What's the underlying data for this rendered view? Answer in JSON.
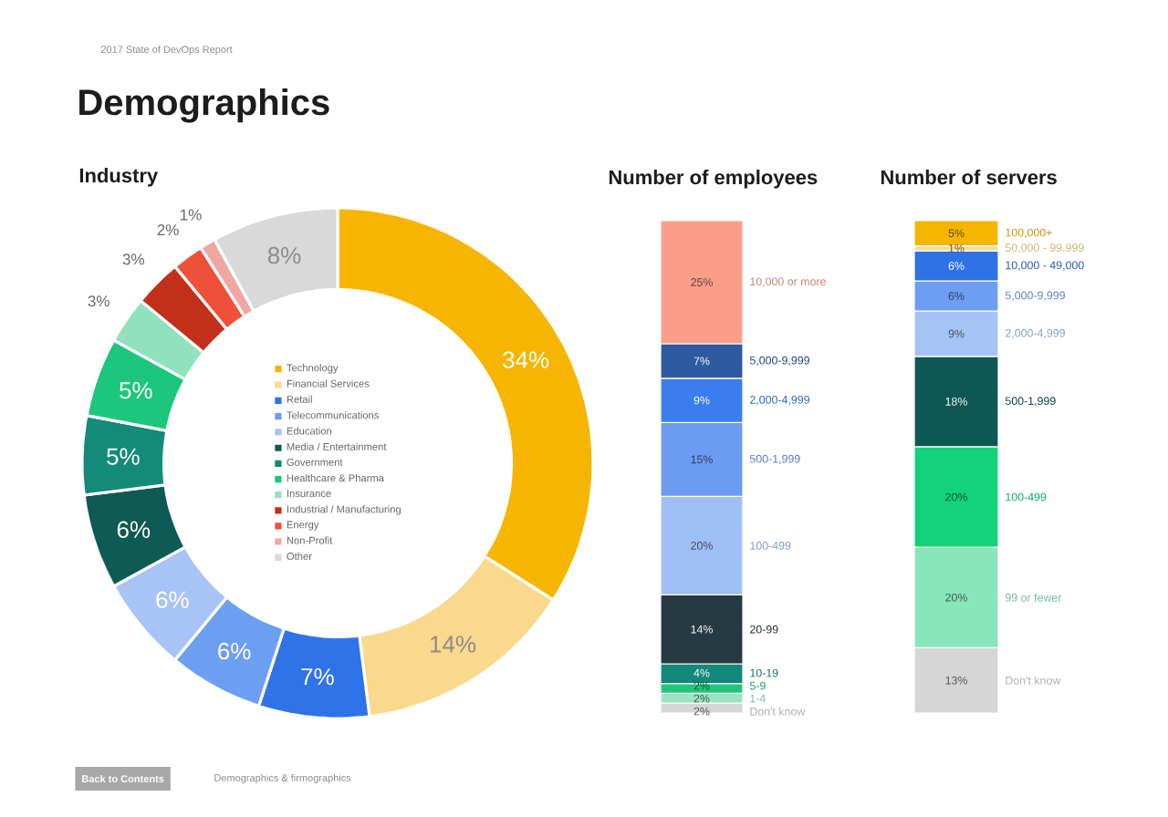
{
  "chart_data": [
    {
      "type": "other",
      "title": "Demographics",
      "subtitle": "2017 State of DevOps Report",
      "annotations": [
        "Back to Contents",
        "Demographics & firmographics"
      ]
    },
    {
      "type": "donut",
      "title": "Industry",
      "categories": [
        "Technology",
        "Financial Services",
        "Retail",
        "Telecommunications",
        "Education",
        "Media / Entertainment",
        "Government",
        "Healthcare & Pharma",
        "Insurance",
        "Industrial / Manufacturing",
        "Energy",
        "Non-Profit",
        "Other"
      ],
      "values": [
        34,
        14,
        7,
        6,
        6,
        6,
        5,
        5,
        3,
        3,
        2,
        1,
        8
      ],
      "colors": [
        "#f6b500",
        "#fad98c",
        "#2f73e8",
        "#6c9ef2",
        "#a8c4f6",
        "#0e5a55",
        "#148a78",
        "#1cc67c",
        "#8fe2bd",
        "#c2301c",
        "#ef503a",
        "#f1a7a1",
        "#d9d9d9"
      ],
      "value_labels": [
        "34%",
        "14%",
        "7%",
        "6%",
        "6%",
        "6%",
        "5%",
        "5%",
        "3%",
        "3%",
        "2%",
        "1%",
        "8%"
      ],
      "legend": "center"
    },
    {
      "type": "bar",
      "stacked": true,
      "title": "Number of employees",
      "categories": [
        null
      ],
      "series": [
        {
          "name": "Don't know",
          "color": "#d6d6d6",
          "values": [
            2
          ],
          "value_labels": [
            "2%"
          ]
        },
        {
          "name": "1-4",
          "color": "#9be3c2",
          "values": [
            2
          ],
          "value_labels": [
            "2%"
          ]
        },
        {
          "name": "5-9",
          "color": "#22c47e",
          "values": [
            2
          ],
          "value_labels": [
            "2%"
          ]
        },
        {
          "name": "10-19",
          "color": "#12897a",
          "values": [
            4
          ],
          "value_labels": [
            "4%"
          ]
        },
        {
          "name": "20-99",
          "color": "#263a42",
          "values": [
            14
          ],
          "value_labels": [
            "14%"
          ]
        },
        {
          "name": "100-499",
          "color": "#a0bff5",
          "values": [
            20
          ],
          "value_labels": [
            "20%"
          ]
        },
        {
          "name": "500-1,999",
          "color": "#6b9cf2",
          "values": [
            15
          ],
          "value_labels": [
            "15%"
          ]
        },
        {
          "name": "2,000-4,999",
          "color": "#3b7ded",
          "values": [
            9
          ],
          "value_labels": [
            "9%"
          ]
        },
        {
          "name": "5,000-9,999",
          "color": "#2d5aa0",
          "values": [
            7
          ],
          "value_labels": [
            "7%"
          ]
        },
        {
          "name": "10,000 or more",
          "color": "#fa9e8a",
          "values": [
            25
          ],
          "value_labels": [
            "25%"
          ]
        }
      ]
    },
    {
      "type": "bar",
      "stacked": true,
      "title": "Number of servers",
      "categories": [
        null
      ],
      "series": [
        {
          "name": "Don't know",
          "color": "#d6d6d6",
          "values": [
            13
          ],
          "value_labels": [
            "13%"
          ]
        },
        {
          "name": "99 or fewer",
          "color": "#88e6bd",
          "values": [
            20
          ],
          "value_labels": [
            "20%"
          ]
        },
        {
          "name": "100-499",
          "color": "#14d279",
          "values": [
            20
          ],
          "value_labels": [
            "20%"
          ]
        },
        {
          "name": "500-1,999",
          "color": "#0d5755",
          "values": [
            18
          ],
          "value_labels": [
            "18%"
          ]
        },
        {
          "name": "2,000-4,999",
          "color": "#a6c3f6",
          "values": [
            9
          ],
          "value_labels": [
            "9%"
          ]
        },
        {
          "name": "5,000-9,999",
          "color": "#6d9ef2",
          "values": [
            6
          ],
          "value_labels": [
            "6%"
          ]
        },
        {
          "name": "10,000 - 49,000",
          "color": "#2f72e6",
          "values": [
            6
          ],
          "value_labels": [
            "6%"
          ]
        },
        {
          "name": "50,000 - 99,999",
          "color": "#f9dc8e",
          "values": [
            1
          ],
          "value_labels": [
            "1%"
          ]
        },
        {
          "name": "100,000+",
          "color": "#f6b500",
          "values": [
            5
          ],
          "value_labels": [
            "5%"
          ]
        }
      ]
    }
  ]
}
